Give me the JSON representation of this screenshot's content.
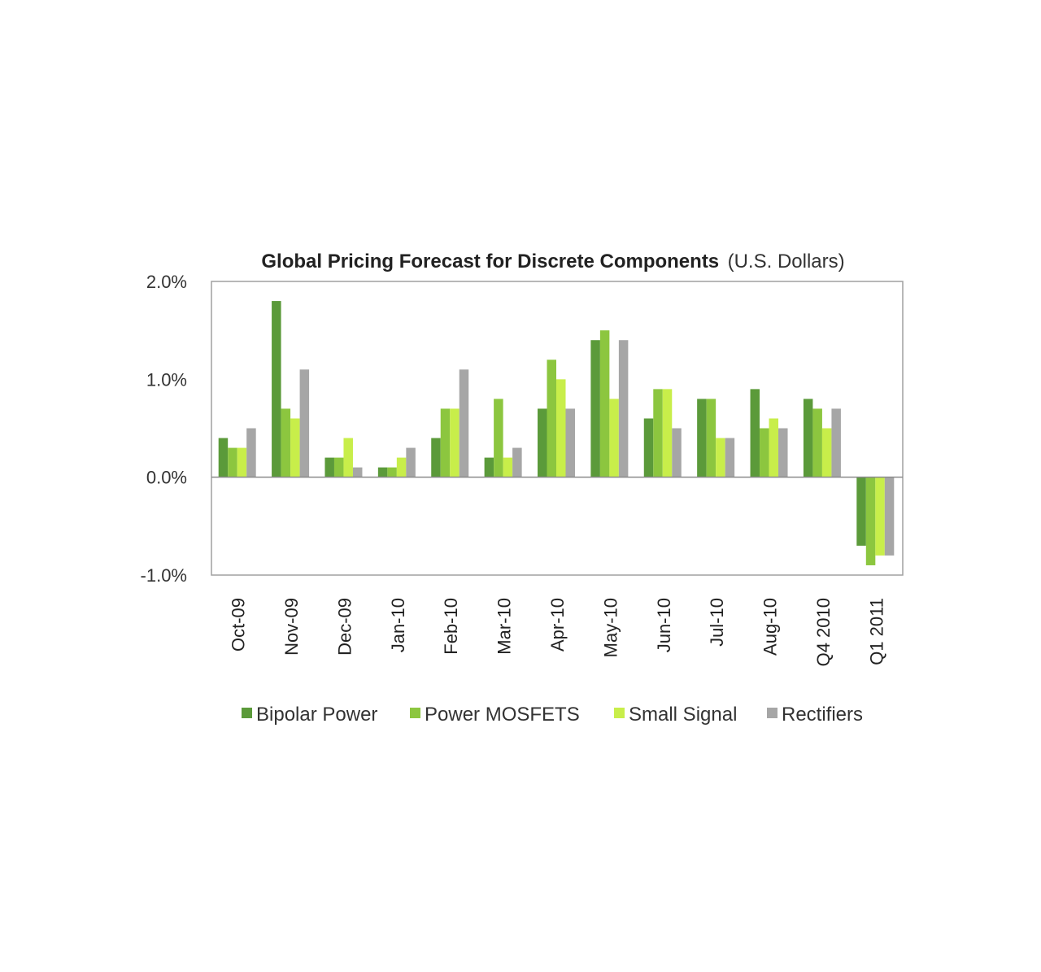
{
  "chart_data": {
    "type": "bar",
    "title": "Global Pricing Forecast for Discrete Components",
    "subtitle": "(U.S. Dollars)",
    "categories": [
      "Oct-09",
      "Nov-09",
      "Dec-09",
      "Jan-10",
      "Feb-10",
      "Mar-10",
      "Apr-10",
      "May-10",
      "Jun-10",
      "Jul-10",
      "Aug-10",
      "Q4 2010",
      "Q1 2011"
    ],
    "series": [
      {
        "name": "Bipolar Power",
        "color": "#5b9a3a",
        "values": [
          0.4,
          1.8,
          0.2,
          0.1,
          0.4,
          0.2,
          0.7,
          1.4,
          0.6,
          0.8,
          0.9,
          0.8,
          -0.7
        ]
      },
      {
        "name": "Power MOSFETS",
        "color": "#8cc63f",
        "values": [
          0.3,
          0.7,
          0.2,
          0.1,
          0.7,
          0.8,
          1.2,
          1.5,
          0.9,
          0.8,
          0.5,
          0.7,
          -0.9
        ]
      },
      {
        "name": "Small Signal",
        "color": "#c8ee4a",
        "values": [
          0.3,
          0.6,
          0.4,
          0.2,
          0.7,
          0.2,
          1.0,
          0.8,
          0.9,
          0.4,
          0.6,
          0.5,
          -0.8
        ]
      },
      {
        "name": "Rectifiers",
        "color": "#a6a6a6",
        "values": [
          0.5,
          1.1,
          0.1,
          0.3,
          1.1,
          0.3,
          0.7,
          1.4,
          0.5,
          0.4,
          0.5,
          0.7,
          -0.8
        ]
      }
    ],
    "yticks": [
      "2.0%",
      "1.0%",
      "0.0%",
      "-1.0%"
    ],
    "ytick_values": [
      2.0,
      1.0,
      0.0,
      -1.0
    ],
    "ylim": [
      -1.0,
      2.0
    ],
    "ylabel": "",
    "xlabel": "",
    "grid": false,
    "legend_position": "bottom"
  }
}
